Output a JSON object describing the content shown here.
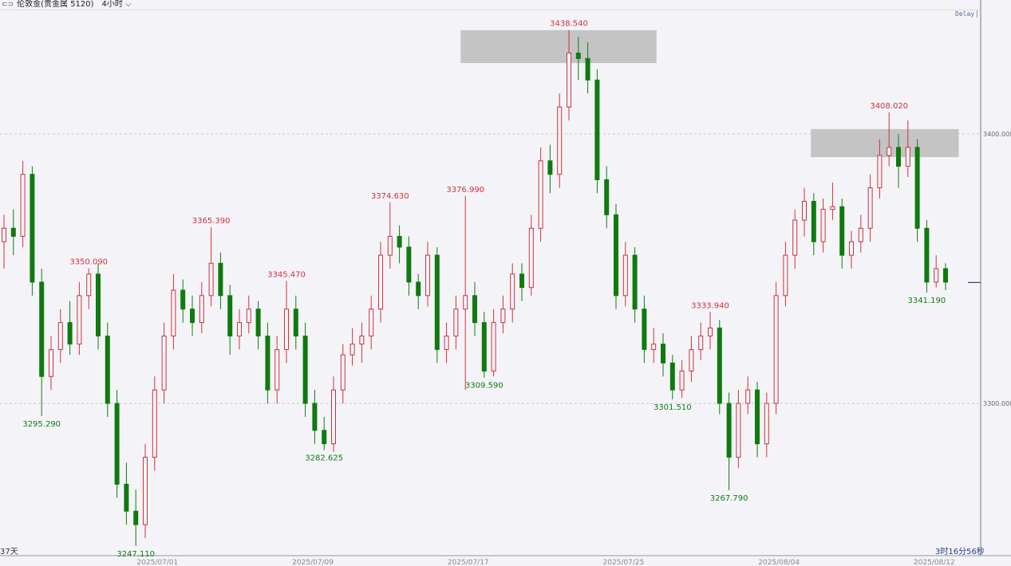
{
  "header": {
    "symbol_icon": "link-icon",
    "title": "伦敦金(贵金属 5120)",
    "timeframe": "4小时",
    "timeframe_icon": "chevron-down-icon",
    "delay_badge": "Delay"
  },
  "footer": {
    "days": "37天",
    "countdown": "3时16分56秒"
  },
  "colors": {
    "up": "#d0303a",
    "down": "#0f7a0f",
    "box": "#c4c4c4",
    "grid": "#c8c8c8",
    "current_marker": "#3a3a7a"
  },
  "chart_data": {
    "type": "candlestick",
    "ylim": [
      3243.5,
      3449.7
    ],
    "y_ticks": [
      {
        "value": 3400,
        "label": "3400.000"
      },
      {
        "value": 3300,
        "label": "3300.000"
      }
    ],
    "x_ticks": [
      {
        "index": 16.3,
        "label": "2025/07/01"
      },
      {
        "index": 32.8,
        "label": "2025/07/09"
      },
      {
        "index": 49.3,
        "label": "2025/07/17"
      },
      {
        "index": 65.8,
        "label": "2025/07/25"
      },
      {
        "index": 82.3,
        "label": "2025/08/04"
      },
      {
        "index": 98.8,
        "label": "2025/08/12"
      }
    ],
    "grid": true,
    "current_price": 3345,
    "candles": [
      [
        3360,
        3370,
        3350,
        3365
      ],
      [
        3365,
        3372,
        3355,
        3362
      ],
      [
        3362,
        3390,
        3358,
        3385
      ],
      [
        3385,
        3388,
        3340,
        3345
      ],
      [
        3345,
        3350,
        3295.29,
        3310
      ],
      [
        3310,
        3325,
        3305,
        3320
      ],
      [
        3320,
        3335,
        3315,
        3330
      ],
      [
        3330,
        3338,
        3318,
        3322
      ],
      [
        3322,
        3345,
        3318,
        3340
      ],
      [
        3340,
        3350.09,
        3335,
        3348
      ],
      [
        3348,
        3352,
        3320,
        3325
      ],
      [
        3325,
        3330,
        3295,
        3300
      ],
      [
        3300,
        3305,
        3265,
        3270
      ],
      [
        3270,
        3278,
        3255,
        3260
      ],
      [
        3260,
        3268,
        3247.11,
        3255
      ],
      [
        3255,
        3285,
        3250,
        3280
      ],
      [
        3280,
        3310,
        3275,
        3305
      ],
      [
        3305,
        3330,
        3300,
        3325
      ],
      [
        3325,
        3348,
        3320,
        3342
      ],
      [
        3342,
        3346,
        3330,
        3335
      ],
      [
        3335,
        3340,
        3325,
        3330
      ],
      [
        3330,
        3345,
        3326,
        3340
      ],
      [
        3340,
        3365.39,
        3336,
        3352
      ],
      [
        3352,
        3356,
        3335,
        3340
      ],
      [
        3340,
        3344,
        3318,
        3325
      ],
      [
        3325,
        3335,
        3320,
        3330
      ],
      [
        3330,
        3340,
        3326,
        3335
      ],
      [
        3335,
        3338,
        3320,
        3325
      ],
      [
        3325,
        3330,
        3300,
        3305
      ],
      [
        3305,
        3325,
        3300,
        3320
      ],
      [
        3320,
        3345.47,
        3315,
        3335
      ],
      [
        3335,
        3340,
        3320,
        3325
      ],
      [
        3325,
        3330,
        3295,
        3300
      ],
      [
        3300,
        3305,
        3285,
        3290
      ],
      [
        3290,
        3295,
        3282.625,
        3285
      ],
      [
        3285,
        3310,
        3282,
        3305
      ],
      [
        3305,
        3322,
        3300,
        3318
      ],
      [
        3318,
        3328,
        3314,
        3322
      ],
      [
        3322,
        3330,
        3315,
        3325
      ],
      [
        3325,
        3340,
        3320,
        3335
      ],
      [
        3335,
        3360,
        3330,
        3355
      ],
      [
        3355,
        3374.63,
        3350,
        3362
      ],
      [
        3362,
        3366,
        3352,
        3358
      ],
      [
        3358,
        3362,
        3340,
        3345
      ],
      [
        3345,
        3348,
        3335,
        3340
      ],
      [
        3340,
        3360,
        3336,
        3355
      ],
      [
        3355,
        3358,
        3315,
        3320
      ],
      [
        3320,
        3330,
        3315,
        3325
      ],
      [
        3325,
        3340,
        3320,
        3335
      ],
      [
        3335,
        3376.99,
        3305,
        3340
      ],
      [
        3340,
        3345,
        3325,
        3330
      ],
      [
        3330,
        3334,
        3309.59,
        3312
      ],
      [
        3312,
        3335,
        3310,
        3330
      ],
      [
        3330,
        3340,
        3326,
        3335
      ],
      [
        3335,
        3352,
        3330,
        3348
      ],
      [
        3348,
        3352,
        3338,
        3343
      ],
      [
        3343,
        3370,
        3340,
        3365
      ],
      [
        3365,
        3395,
        3360,
        3390
      ],
      [
        3390,
        3396,
        3378,
        3385
      ],
      [
        3385,
        3415,
        3380,
        3410
      ],
      [
        3410,
        3438.54,
        3405,
        3430
      ],
      [
        3430,
        3436,
        3420,
        3428
      ],
      [
        3428,
        3434,
        3415,
        3420
      ],
      [
        3420,
        3424,
        3378,
        3383
      ],
      [
        3383,
        3388,
        3365,
        3370
      ],
      [
        3370,
        3374,
        3335,
        3340
      ],
      [
        3340,
        3360,
        3336,
        3355
      ],
      [
        3355,
        3358,
        3330,
        3335
      ],
      [
        3335,
        3340,
        3315,
        3320
      ],
      [
        3320,
        3328,
        3315,
        3322
      ],
      [
        3322,
        3326,
        3310,
        3315
      ],
      [
        3315,
        3318,
        3301.51,
        3305
      ],
      [
        3305,
        3316,
        3302,
        3312
      ],
      [
        3312,
        3325,
        3308,
        3320
      ],
      [
        3320,
        3330,
        3316,
        3325
      ],
      [
        3325,
        3333.94,
        3320,
        3328
      ],
      [
        3328,
        3331,
        3296,
        3300
      ],
      [
        3300,
        3304,
        3267.79,
        3280
      ],
      [
        3280,
        3305,
        3276,
        3300
      ],
      [
        3300,
        3310,
        3296,
        3305
      ],
      [
        3305,
        3308,
        3280,
        3285
      ],
      [
        3285,
        3304,
        3280,
        3300
      ],
      [
        3300,
        3345,
        3296,
        3340
      ],
      [
        3340,
        3360,
        3336,
        3355
      ],
      [
        3355,
        3372,
        3350,
        3368
      ],
      [
        3368,
        3380,
        3362,
        3375
      ],
      [
        3375,
        3378,
        3355,
        3360
      ],
      [
        3360,
        3376,
        3356,
        3372
      ],
      [
        3372,
        3382,
        3368,
        3373
      ],
      [
        3373,
        3376,
        3350,
        3355
      ],
      [
        3355,
        3364,
        3350,
        3360
      ],
      [
        3360,
        3370,
        3356,
        3365
      ],
      [
        3365,
        3385,
        3360,
        3380
      ],
      [
        3380,
        3398,
        3376,
        3392
      ],
      [
        3392,
        3408.02,
        3388,
        3395
      ],
      [
        3395,
        3400,
        3380,
        3388
      ],
      [
        3388,
        3405,
        3384,
        3395
      ],
      [
        3395,
        3398,
        3360,
        3365
      ],
      [
        3365,
        3368,
        3341.19,
        3345
      ],
      [
        3345,
        3355,
        3343,
        3350
      ],
      [
        3350,
        3352,
        3342,
        3345
      ]
    ],
    "annotations": [
      {
        "index": 4,
        "kind": "low",
        "label": "3295.290"
      },
      {
        "index": 9,
        "kind": "high",
        "label": "3350.090"
      },
      {
        "index": 14,
        "kind": "low",
        "label": "3247.110"
      },
      {
        "index": 22,
        "kind": "high",
        "label": "3365.390"
      },
      {
        "index": 30,
        "kind": "high",
        "label": "3345.470"
      },
      {
        "index": 34,
        "kind": "low",
        "label": "3282.625"
      },
      {
        "index": 41,
        "kind": "high",
        "label": "3374.630"
      },
      {
        "index": 49,
        "kind": "high",
        "label": "3376.990"
      },
      {
        "index": 51,
        "kind": "low",
        "label": "3309.590"
      },
      {
        "index": 60,
        "kind": "high",
        "label": "3438.540"
      },
      {
        "index": 71,
        "kind": "low",
        "label": "3301.510"
      },
      {
        "index": 75,
        "kind": "high",
        "label": "3333.940"
      },
      {
        "index": 77,
        "kind": "low",
        "label": "3267.790"
      },
      {
        "index": 94,
        "kind": "high",
        "label": "3408.020"
      },
      {
        "index": 98,
        "kind": "low",
        "label": "3341.190"
      }
    ],
    "zones": [
      {
        "from_index": 48.5,
        "to_index": 69.3,
        "top": 3438.5,
        "bottom": 3426.3
      },
      {
        "from_index": 85.7,
        "to_index": 101.4,
        "top": 3401.8,
        "bottom": 3391.4
      }
    ]
  }
}
